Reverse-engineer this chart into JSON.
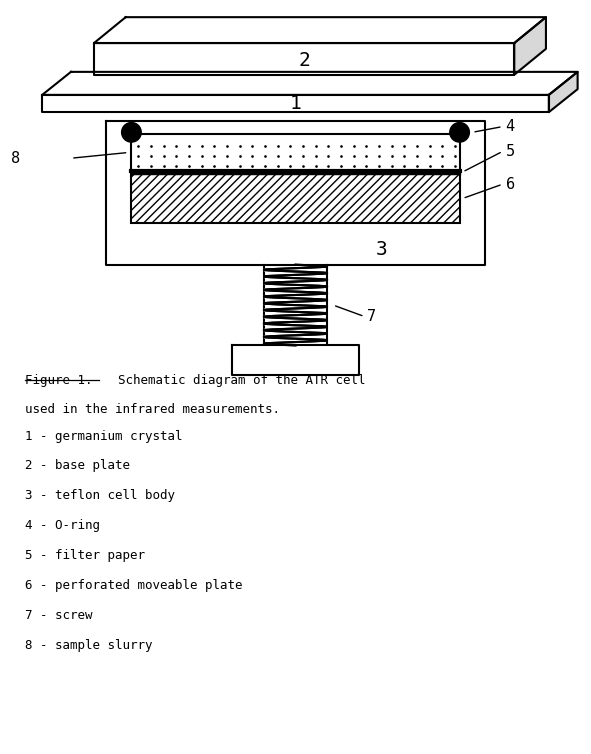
{
  "background_color": "#ffffff",
  "legend_lines": [
    "1 - germanium crystal",
    "2 - base plate",
    "3 - teflon cell body",
    "4 - O-ring",
    "5 - filter paper",
    "6 - perforated moveable plate",
    "7 - screw",
    "8 - sample slurry"
  ],
  "line_color": "#000000",
  "fig_width": 5.91,
  "fig_height": 7.54
}
